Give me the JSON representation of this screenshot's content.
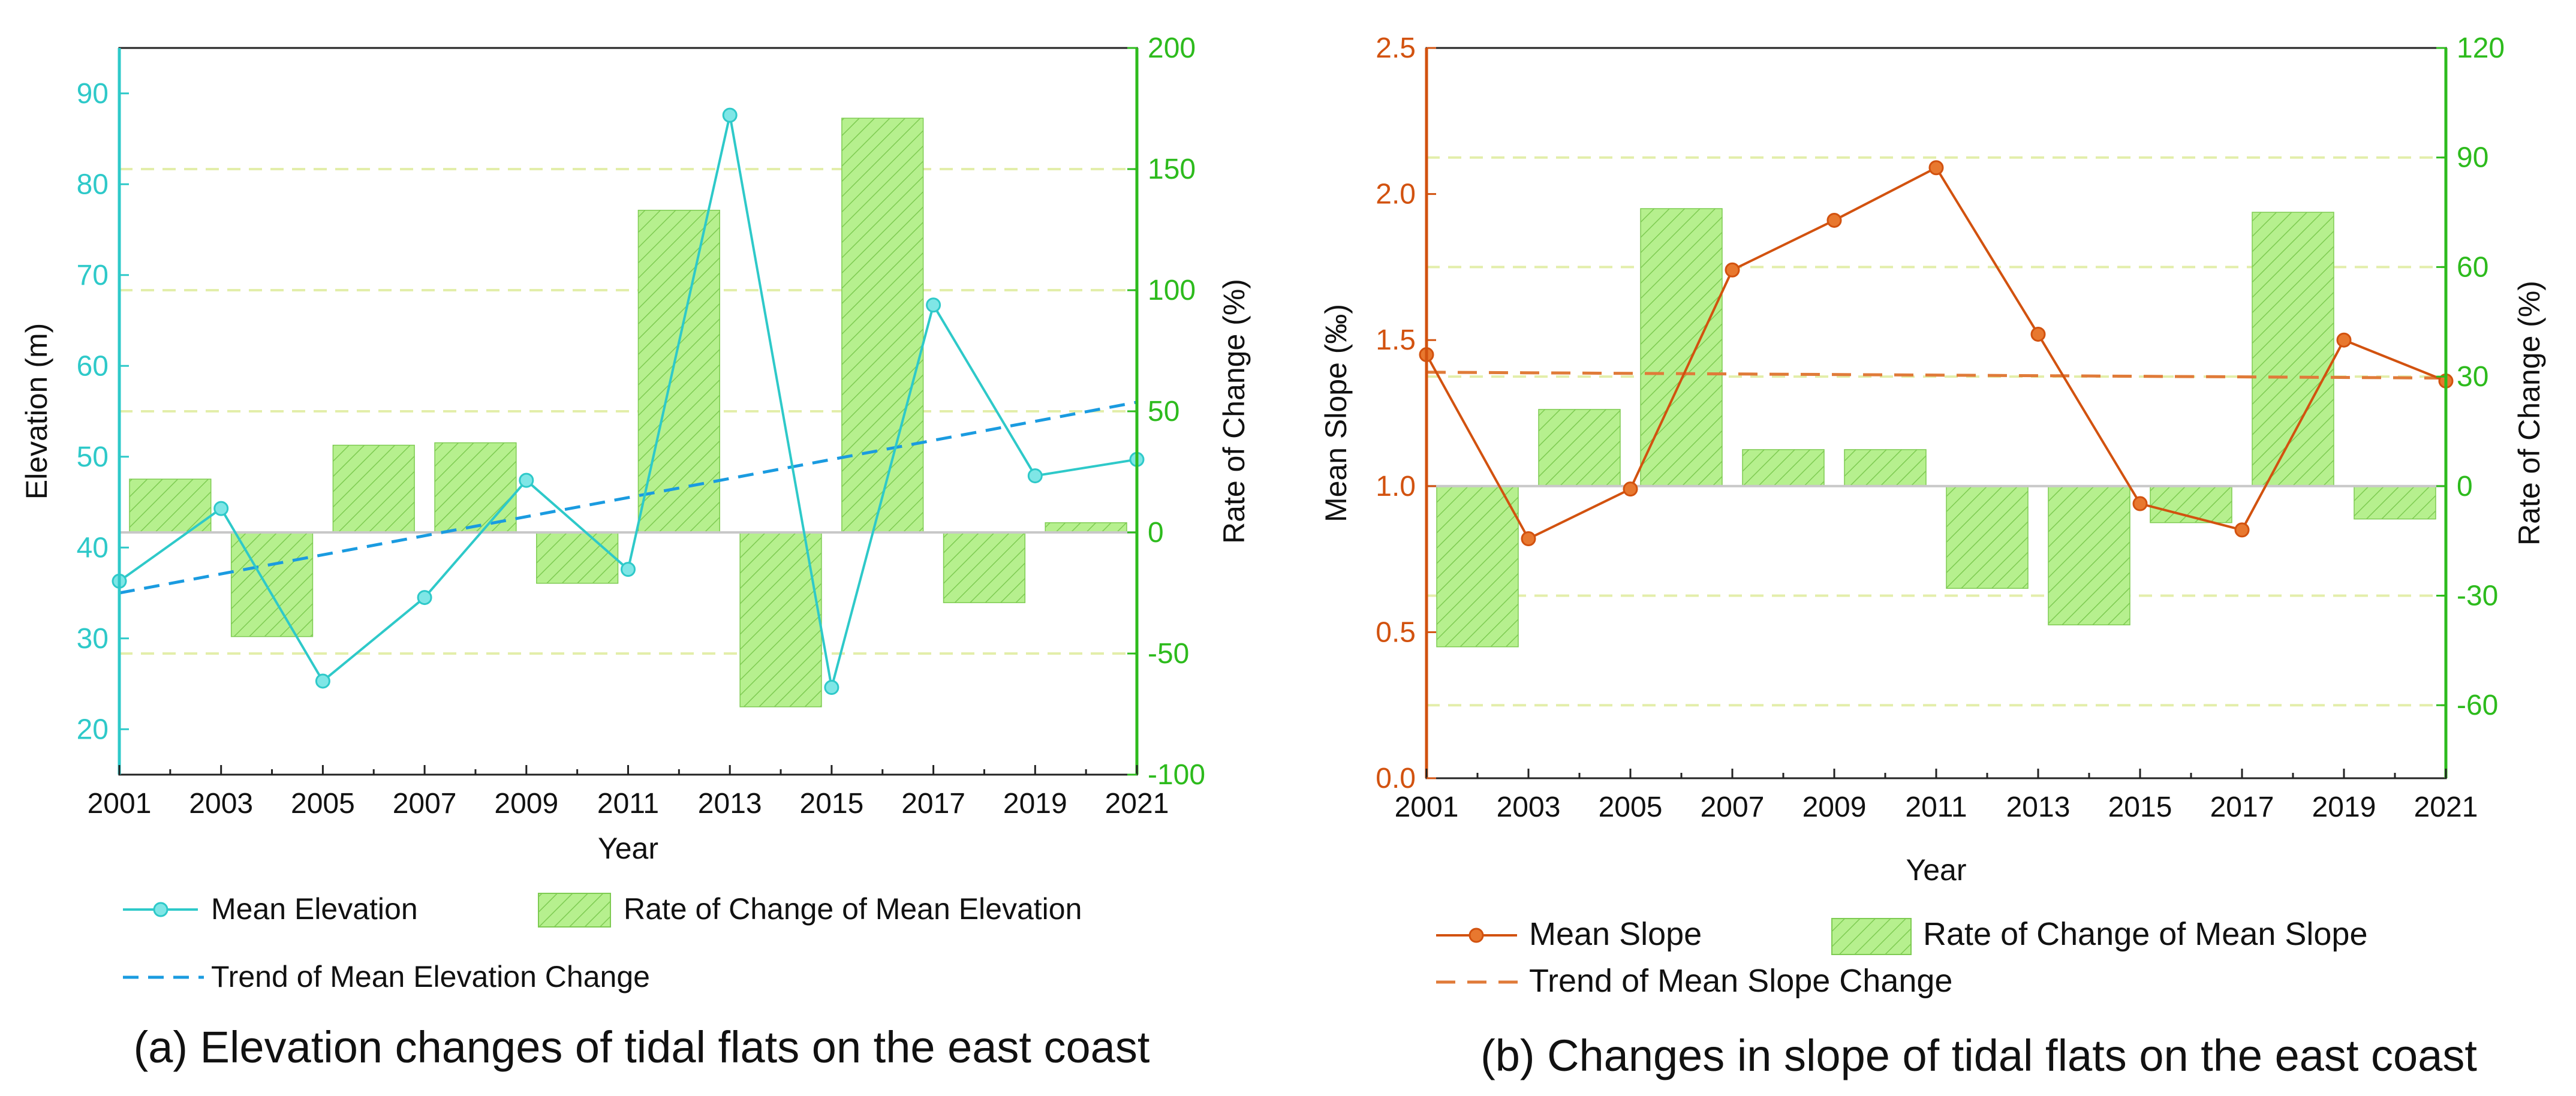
{
  "colors": {
    "elevation": "#2ec9c9",
    "trend_elevation": "#1a9be0",
    "slope": "#d2520f",
    "trend_slope": "#e07b39",
    "rate_axis": "#2dbb1d",
    "bar_fill": "#b6f08e",
    "bar_hatch": "#7ecb52",
    "gridline": "#e3eeaa",
    "zero_line": "#c8c8c8"
  },
  "chart_data": [
    {
      "id": "a",
      "type": "bar+line",
      "caption": "(a) Elevation changes of tidal flats on the east coast",
      "xlabel": "Year",
      "ylabel_left": "Elevation (m)",
      "ylabel_right": "Rate of Change (%)",
      "xlim": [
        2001,
        2021
      ],
      "xticks": [
        "2001",
        "2003",
        "2005",
        "2007",
        "2009",
        "2011",
        "2013",
        "2015",
        "2017",
        "2019",
        "2021"
      ],
      "ylim_left": [
        15,
        95
      ],
      "yticks_left": [
        "20",
        "30",
        "40",
        "50",
        "60",
        "70",
        "80",
        "90"
      ],
      "ylim_right": [
        -100,
        200
      ],
      "yticks_right": [
        "200",
        "150",
        "100",
        "50",
        "0",
        "-50",
        "-100"
      ],
      "grid_right": [
        -50,
        50,
        100,
        150
      ],
      "line_series": {
        "name": "Mean Elevation",
        "x": [
          2001,
          2003,
          2005,
          2007,
          2009,
          2011,
          2013,
          2015,
          2017,
          2019,
          2021
        ],
        "y": [
          36.3,
          44.3,
          25.3,
          34.5,
          47.4,
          37.6,
          87.6,
          24.6,
          66.7,
          47.9,
          49.7
        ]
      },
      "trend": {
        "name": "Trend of Mean Elevation Change",
        "x": [
          2001,
          2021
        ],
        "y": [
          35.0,
          56.0
        ]
      },
      "bar_series": {
        "name": "Rate of Change of Mean Elevation",
        "x_centers": [
          2002,
          2004,
          2006,
          2008,
          2010,
          2012,
          2014,
          2016,
          2018,
          2020
        ],
        "values": [
          22,
          -43,
          36,
          37,
          -21,
          133,
          -72,
          171,
          -29,
          4
        ]
      },
      "legend": {
        "line": "Mean Elevation",
        "bar": "Rate of Change of Mean Elevation",
        "trend": "Trend of Mean Elevation Change"
      }
    },
    {
      "id": "b",
      "type": "bar+line",
      "caption": "(b) Changes in slope of tidal flats on the east coast",
      "xlabel": "Year",
      "ylabel_left": "Mean Slope (‰)",
      "ylabel_right": "Rate of Change (%)",
      "xlim": [
        2001,
        2021
      ],
      "xticks": [
        "2001",
        "2003",
        "2005",
        "2007",
        "2009",
        "2011",
        "2013",
        "2015",
        "2017",
        "2019",
        "2021"
      ],
      "ylim_left": [
        0,
        2.5
      ],
      "yticks_left": [
        "0.0",
        "0.5",
        "1.0",
        "1.5",
        "2.0",
        "2.5"
      ],
      "ylim_right": [
        -80,
        120
      ],
      "yticks_right": [
        "120",
        "90",
        "60",
        "30",
        "0",
        "-30",
        "-60"
      ],
      "grid_right": [
        -60,
        -30,
        30,
        60,
        90
      ],
      "line_series": {
        "name": "Mean Slope",
        "x": [
          2001,
          2003,
          2005,
          2007,
          2009,
          2011,
          2013,
          2015,
          2017,
          2019,
          2021
        ],
        "y": [
          1.45,
          0.82,
          0.99,
          1.74,
          1.91,
          2.09,
          1.52,
          0.94,
          0.85,
          1.5,
          1.36
        ]
      },
      "trend": {
        "name": "Trend of Mean Slope Change",
        "x": [
          2001,
          2021
        ],
        "y": [
          1.39,
          1.37
        ]
      },
      "bar_series": {
        "name": "Rate of Change of Mean Slope",
        "x_centers": [
          2002,
          2004,
          2006,
          2008,
          2010,
          2012,
          2014,
          2016,
          2018,
          2020
        ],
        "values": [
          -44,
          21,
          76,
          10,
          10,
          -28,
          -38,
          -10,
          75,
          -9
        ]
      },
      "legend": {
        "line": "Mean Slope",
        "bar": "Rate of Change of Mean Slope",
        "trend": "Trend of Mean Slope Change"
      }
    }
  ]
}
